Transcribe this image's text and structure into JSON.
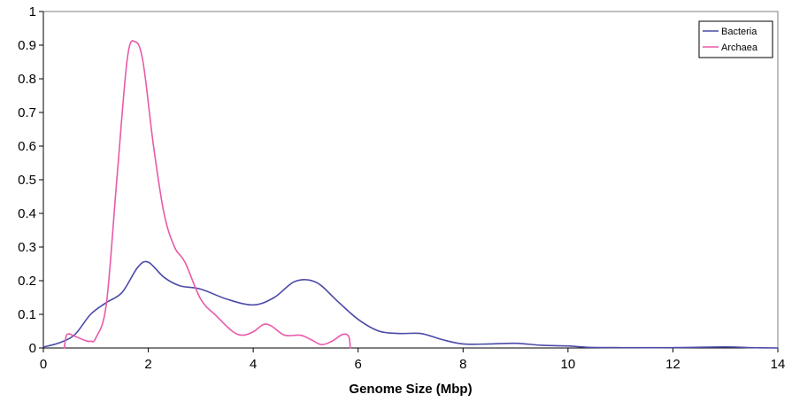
{
  "chart_data": {
    "type": "line",
    "title": "",
    "xlabel": "Genome Size (Mbp)",
    "ylabel": "",
    "xlim": [
      0,
      14
    ],
    "ylim": [
      0,
      1
    ],
    "x_ticks": [
      "0",
      "2",
      "4",
      "6",
      "8",
      "10",
      "12",
      "14"
    ],
    "y_ticks": [
      "0",
      "0.1",
      "0.2",
      "0.3",
      "0.4",
      "0.5",
      "0.6",
      "0.7",
      "0.8",
      "0.9",
      "1"
    ],
    "grid": false,
    "legend": "top-right",
    "series": [
      {
        "name": "Bacteria",
        "color": "#4a4aa8",
        "points": [
          [
            0,
            0.003
          ],
          [
            0.3,
            0.015
          ],
          [
            0.6,
            0.04
          ],
          [
            0.9,
            0.1
          ],
          [
            1.2,
            0.135
          ],
          [
            1.5,
            0.165
          ],
          [
            1.8,
            0.24
          ],
          [
            2.0,
            0.255
          ],
          [
            2.3,
            0.21
          ],
          [
            2.6,
            0.185
          ],
          [
            3.0,
            0.175
          ],
          [
            3.5,
            0.145
          ],
          [
            4.0,
            0.128
          ],
          [
            4.4,
            0.15
          ],
          [
            4.8,
            0.198
          ],
          [
            5.2,
            0.195
          ],
          [
            5.6,
            0.14
          ],
          [
            6.0,
            0.085
          ],
          [
            6.4,
            0.05
          ],
          [
            6.8,
            0.043
          ],
          [
            7.2,
            0.043
          ],
          [
            7.6,
            0.025
          ],
          [
            8.0,
            0.012
          ],
          [
            8.5,
            0.012
          ],
          [
            9.0,
            0.014
          ],
          [
            9.5,
            0.008
          ],
          [
            10.0,
            0.006
          ],
          [
            10.4,
            0.002
          ],
          [
            11.0,
            0.001
          ],
          [
            12.0,
            0.001
          ],
          [
            13.0,
            0.003
          ],
          [
            13.5,
            0.001
          ],
          [
            14.0,
            0.0
          ]
        ]
      },
      {
        "name": "Archaea",
        "color": "#e85aa8",
        "points": [
          [
            0.4,
            0.0
          ],
          [
            0.45,
            0.04
          ],
          [
            0.6,
            0.035
          ],
          [
            0.8,
            0.022
          ],
          [
            0.9,
            0.02
          ],
          [
            1.0,
            0.03
          ],
          [
            1.2,
            0.13
          ],
          [
            1.4,
            0.5
          ],
          [
            1.6,
            0.86
          ],
          [
            1.75,
            0.91
          ],
          [
            1.9,
            0.85
          ],
          [
            2.1,
            0.6
          ],
          [
            2.3,
            0.4
          ],
          [
            2.5,
            0.3
          ],
          [
            2.7,
            0.255
          ],
          [
            3.0,
            0.145
          ],
          [
            3.3,
            0.095
          ],
          [
            3.6,
            0.05
          ],
          [
            3.8,
            0.038
          ],
          [
            4.0,
            0.048
          ],
          [
            4.2,
            0.07
          ],
          [
            4.35,
            0.065
          ],
          [
            4.6,
            0.038
          ],
          [
            4.9,
            0.038
          ],
          [
            5.1,
            0.025
          ],
          [
            5.3,
            0.01
          ],
          [
            5.5,
            0.02
          ],
          [
            5.7,
            0.04
          ],
          [
            5.82,
            0.035
          ],
          [
            5.85,
            0.0
          ]
        ]
      }
    ]
  }
}
